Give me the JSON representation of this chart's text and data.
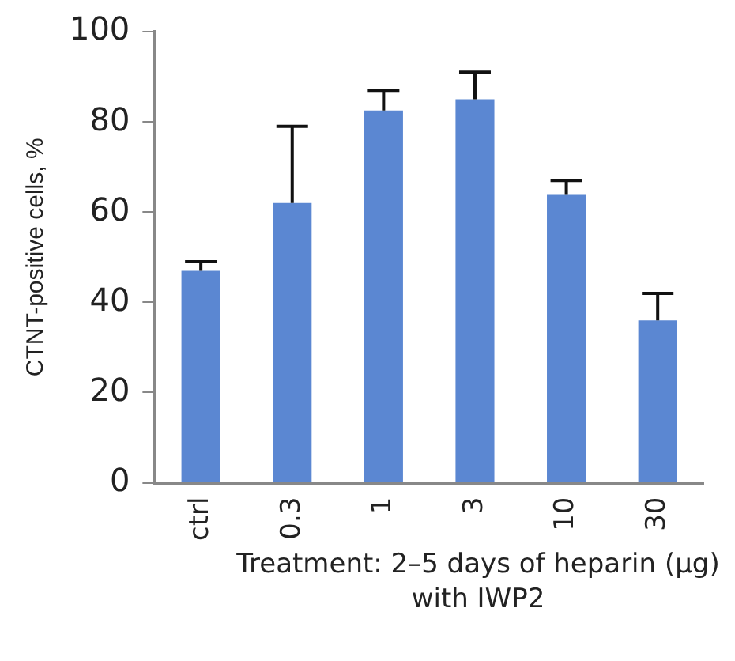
{
  "chart_data": {
    "type": "bar",
    "ylabel": "CTNT-positive cells, %",
    "xlabel": "Treatment: 2–5 days of heparin (μg) with IWP2",
    "categories": [
      "ctrl",
      "0.3",
      "1",
      "3",
      "10",
      "30"
    ],
    "values": [
      47,
      62,
      82.5,
      85,
      64,
      36
    ],
    "errors": [
      [
        47,
        49
      ],
      [
        62,
        79
      ],
      [
        82.5,
        87
      ],
      [
        85,
        91
      ],
      [
        64,
        67
      ],
      [
        36,
        42
      ]
    ],
    "color": "#5b87d2",
    "ylim": [
      0,
      100
    ],
    "yticks": [
      0,
      20,
      40,
      60,
      80,
      100
    ],
    "grid": false,
    "legend": false
  }
}
